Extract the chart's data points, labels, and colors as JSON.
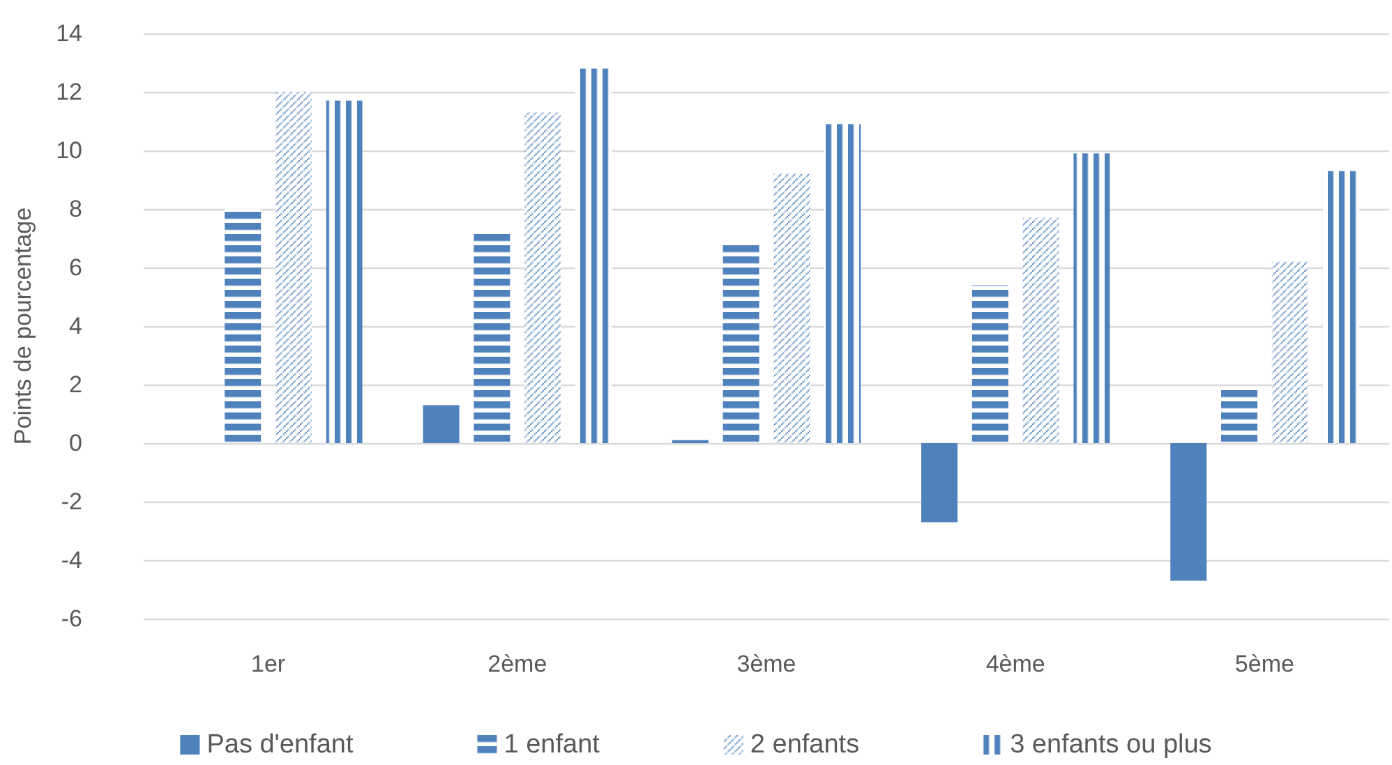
{
  "chart_data": {
    "type": "bar",
    "ylabel": "Points de pourcentage",
    "categories": [
      "1er",
      "2ème",
      "3ème",
      "4ème",
      "5ème"
    ],
    "series": [
      {
        "name": "Pas d'enfant",
        "color": "#4f81bd",
        "values": [
          0,
          1.3,
          0.1,
          -2.7,
          -4.7
        ]
      },
      {
        "name": "1 enfant",
        "color": "#4f81bd",
        "values": [
          8.0,
          7.2,
          6.8,
          5.4,
          1.9
        ]
      },
      {
        "name": "2 enfants",
        "color": "#4f81bd",
        "values": [
          12.0,
          11.3,
          9.2,
          7.7,
          6.2
        ]
      },
      {
        "name": "3 enfants ou plus",
        "color": "#4f81bd",
        "values": [
          11.7,
          12.8,
          10.9,
          9.9,
          9.3
        ]
      }
    ],
    "ylim": [
      -6,
      14
    ],
    "yticks": [
      -6,
      -4,
      -2,
      0,
      2,
      4,
      6,
      8,
      10,
      12,
      14
    ],
    "grid": "y",
    "legend": "bottom"
  }
}
